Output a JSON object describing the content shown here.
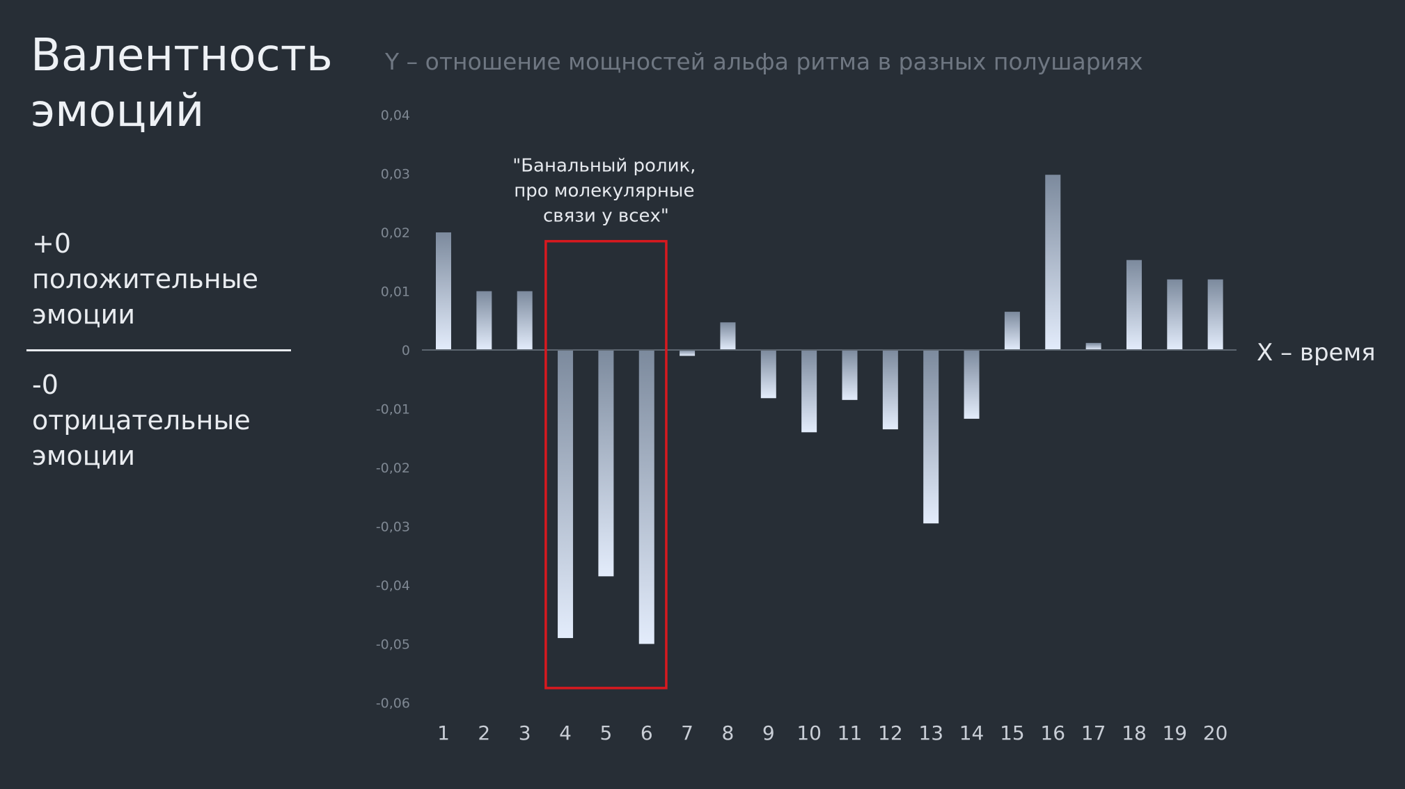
{
  "title_lines": [
    "Валентность",
    "эмоций"
  ],
  "legend": {
    "positive_lines": [
      "+0",
      "положительные",
      "эмоции"
    ],
    "negative_lines": [
      "-0",
      "отрицательные",
      "эмоции"
    ]
  },
  "colors": {
    "background": "#272e36",
    "bar_top": "#7c8a9d",
    "bar_bottom": "#e3ecfb",
    "highlight_box": "#d7191f",
    "axis": "#5d6670"
  },
  "chart_data": {
    "type": "bar",
    "ylabel": "Y – отношение мощностей альфа ритма в разных полушариях",
    "xlabel": "X – время",
    "ylim": [
      -0.06,
      0.04
    ],
    "y_ticks": [
      0.04,
      0.03,
      0.02,
      0.01,
      0,
      -0.01,
      -0.02,
      -0.03,
      -0.04,
      -0.05,
      -0.06
    ],
    "y_tick_labels": [
      "0,04",
      "0,03",
      "0,02",
      "0,01",
      "0",
      "-0,01",
      "-0,02",
      "-0,03",
      "-0,04",
      "-0,05",
      "-0,06"
    ],
    "categories": [
      "1",
      "2",
      "3",
      "4",
      "5",
      "6",
      "7",
      "8",
      "9",
      "10",
      "11",
      "12",
      "13",
      "14",
      "15",
      "16",
      "17",
      "18",
      "19",
      "20"
    ],
    "values": [
      0.02,
      0.01,
      0.01,
      -0.049,
      -0.0385,
      -0.05,
      -0.001,
      0.0047,
      -0.0082,
      -0.014,
      -0.0085,
      -0.0135,
      -0.0295,
      -0.0117,
      0.0065,
      0.0298,
      0.0012,
      0.0153,
      0.012,
      0.012
    ],
    "grid": false,
    "highlight": {
      "categories": [
        "4",
        "5",
        "6"
      ],
      "ylim": [
        -0.0575,
        0.0185
      ],
      "annotation_lines": [
        "\"Банальный ролик,",
        "про молекулярные",
        "связи у всех\""
      ]
    }
  }
}
